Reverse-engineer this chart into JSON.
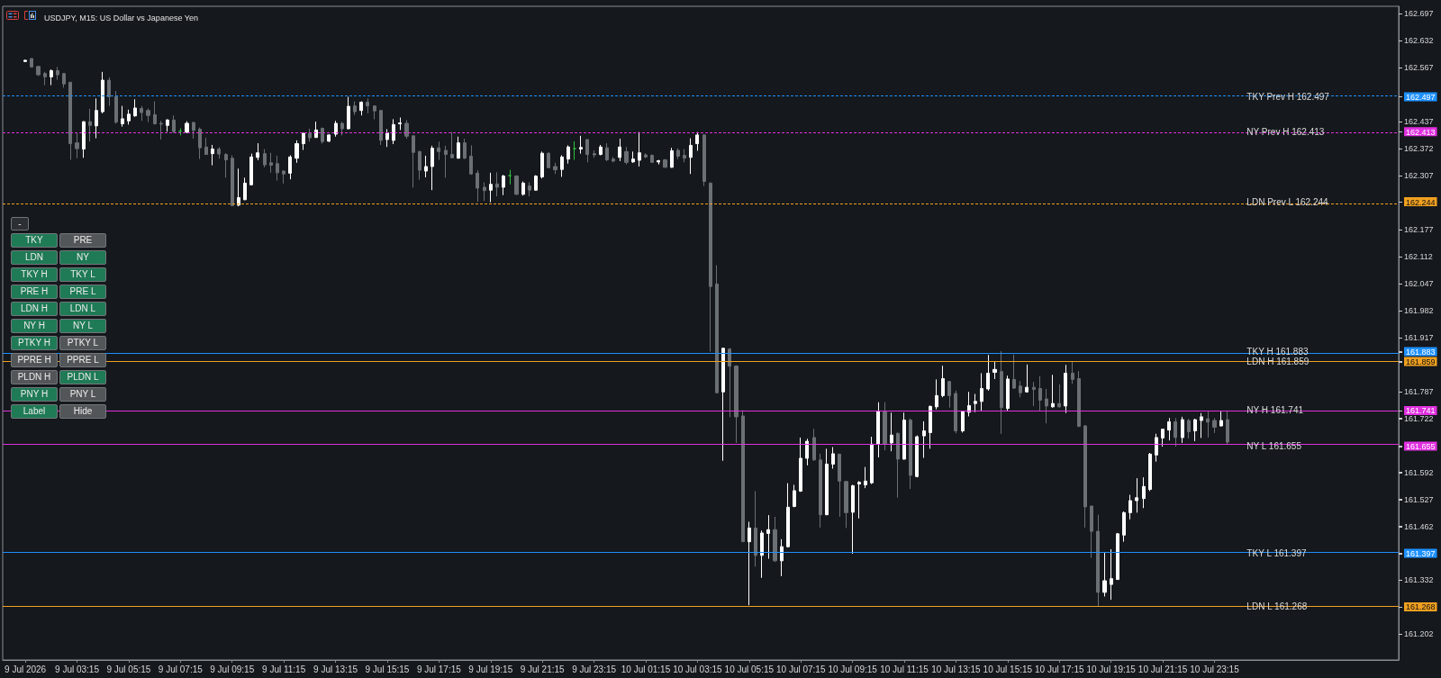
{
  "chart_data": {
    "type": "candlestick",
    "title": "USDJPY, M15: US Dollar vs Japanese Yen",
    "categories": [
      null,
      null,
      null,
      "9 Jul 2026",
      null,
      null,
      null,
      null,
      null,
      null,
      null,
      "9 Jul 03:15",
      null,
      null,
      null,
      null,
      null,
      null,
      null,
      "9 Jul 05:15",
      null,
      null,
      null,
      null,
      null,
      null,
      null,
      "9 Jul 07:15",
      null,
      null,
      null,
      null,
      null,
      null,
      null,
      "9 Jul 09:15",
      null,
      null,
      null,
      null,
      null,
      null,
      null,
      "9 Jul 11:15",
      null,
      null,
      null,
      null,
      null,
      null,
      null,
      "9 Jul 13:15",
      null,
      null,
      null,
      null,
      null,
      null,
      null,
      "9 Jul 15:15",
      null,
      null,
      null,
      null,
      null,
      null,
      null,
      "9 Jul 17:15",
      null,
      null,
      null,
      null,
      null,
      null,
      null,
      "9 Jul 19:15",
      null,
      null,
      null,
      null,
      null,
      null,
      null,
      "9 Jul 21:15",
      null,
      null,
      null,
      null,
      null,
      null,
      null,
      "9 Jul 23:15",
      null,
      null,
      null,
      null,
      null,
      null,
      null,
      "10 Jul 01:15",
      null,
      null,
      null,
      null,
      null,
      null,
      null,
      "10 Jul 03:15",
      null,
      null,
      null,
      null,
      null,
      null,
      null,
      "10 Jul 05:15",
      null,
      null,
      null,
      null,
      null,
      null,
      null,
      "10 Jul 07:15",
      null,
      null,
      null,
      null,
      null,
      null,
      null,
      "10 Jul 09:15",
      null,
      null,
      null,
      null,
      null,
      null,
      null,
      "10 Jul 11:15",
      null,
      null,
      null,
      null,
      null,
      null,
      null,
      "10 Jul 13:15",
      null,
      null,
      null,
      null,
      null,
      null,
      null,
      "10 Jul 15:15",
      null,
      null,
      null,
      null,
      null,
      null,
      null,
      "10 Jul 17:15",
      null,
      null,
      null,
      null,
      null,
      null,
      null,
      "10 Jul 19:15",
      null,
      null,
      null,
      null,
      null,
      null,
      null,
      "10 Jul 21:15",
      null,
      null,
      null,
      null,
      null,
      null,
      null,
      "10 Jul 23:15",
      null,
      null,
      null,
      null,
      null,
      null,
      null,
      null,
      null,
      null,
      null,
      null,
      null,
      null,
      null,
      null,
      null,
      null,
      null,
      null,
      null,
      null,
      null,
      null,
      null,
      null,
      null,
      null
    ],
    "ohlc": [
      null,
      null,
      null,
      [
        162.582,
        162.586,
        162.581,
        162.585
      ],
      [
        162.589,
        162.59,
        162.567,
        162.569
      ],
      [
        162.57,
        162.571,
        162.547,
        162.55
      ],
      [
        162.553,
        162.557,
        162.525,
        162.545
      ],
      [
        162.545,
        162.563,
        162.525,
        162.56
      ],
      [
        162.56,
        162.569,
        162.538,
        162.55
      ],
      [
        162.553,
        162.554,
        162.519,
        162.528
      ],
      [
        162.532,
        162.533,
        162.345,
        162.384
      ],
      [
        162.386,
        162.41,
        162.349,
        162.372
      ],
      [
        162.371,
        162.438,
        162.35,
        162.437
      ],
      [
        162.437,
        162.468,
        162.389,
        162.428
      ],
      [
        162.427,
        162.493,
        162.397,
        162.464
      ],
      [
        162.461,
        162.557,
        162.457,
        162.537
      ],
      [
        162.537,
        162.544,
        162.475,
        162.497
      ],
      [
        162.497,
        162.511,
        162.432,
        162.436
      ],
      [
        162.432,
        162.475,
        162.425,
        162.444
      ],
      [
        162.439,
        162.466,
        162.43,
        162.455
      ],
      [
        162.451,
        162.491,
        162.449,
        162.47
      ],
      [
        162.469,
        162.475,
        162.439,
        162.459
      ],
      [
        162.464,
        162.469,
        162.436,
        162.452
      ],
      [
        162.454,
        162.486,
        162.43,
        162.432
      ],
      [
        162.433,
        162.439,
        162.394,
        162.431
      ],
      [
        162.428,
        162.443,
        162.413,
        162.441
      ],
      [
        162.441,
        162.452,
        162.41,
        162.413
      ],
      [
        162.414,
        162.421,
        162.404,
        162.414
      ],
      [
        162.412,
        162.438,
        162.409,
        162.433
      ],
      [
        162.435,
        162.437,
        162.396,
        162.416
      ],
      [
        162.419,
        162.423,
        162.347,
        162.374
      ],
      [
        162.376,
        162.398,
        162.357,
        162.358
      ],
      [
        162.36,
        162.381,
        162.332,
        162.371
      ],
      [
        162.371,
        162.376,
        162.348,
        162.359
      ],
      [
        162.358,
        162.361,
        162.302,
        162.345
      ],
      [
        162.349,
        162.356,
        162.233,
        162.235
      ],
      [
        162.236,
        162.324,
        162.233,
        162.254
      ],
      [
        162.249,
        162.302,
        162.248,
        162.289
      ],
      [
        162.285,
        162.36,
        162.284,
        162.352
      ],
      [
        162.351,
        162.385,
        162.344,
        162.362
      ],
      [
        162.36,
        162.371,
        162.327,
        162.333
      ],
      [
        162.338,
        162.362,
        162.314,
        162.332
      ],
      [
        162.336,
        162.355,
        162.295,
        162.314
      ],
      [
        162.318,
        162.32,
        162.288,
        162.311
      ],
      [
        162.313,
        162.356,
        162.298,
        162.352
      ],
      [
        162.349,
        162.392,
        162.338,
        162.384
      ],
      [
        162.384,
        162.41,
        162.369,
        162.409
      ],
      [
        162.409,
        162.42,
        162.389,
        162.398
      ],
      [
        162.399,
        162.437,
        162.398,
        162.417
      ],
      [
        162.421,
        162.423,
        162.384,
        162.389
      ],
      [
        162.39,
        162.407,
        162.388,
        162.405
      ],
      [
        162.407,
        162.439,
        162.401,
        162.433
      ],
      [
        162.433,
        162.437,
        162.404,
        162.42
      ],
      [
        162.42,
        162.497,
        162.418,
        162.474
      ],
      [
        162.475,
        162.486,
        162.453,
        162.461
      ],
      [
        162.464,
        162.486,
        162.452,
        162.484
      ],
      [
        162.484,
        162.493,
        162.457,
        162.475
      ],
      [
        162.475,
        162.476,
        162.443,
        162.463
      ],
      [
        162.464,
        162.465,
        162.381,
        162.392
      ],
      [
        162.394,
        162.419,
        162.376,
        162.41
      ],
      [
        162.392,
        162.443,
        162.383,
        162.43
      ],
      [
        162.432,
        162.447,
        162.417,
        162.434
      ],
      [
        162.433,
        162.441,
        162.396,
        162.402
      ],
      [
        162.403,
        162.404,
        162.278,
        162.363
      ],
      [
        162.365,
        162.367,
        162.297,
        162.32
      ],
      [
        162.318,
        162.355,
        162.303,
        162.329
      ],
      [
        162.329,
        162.379,
        162.272,
        162.373
      ],
      [
        162.374,
        162.389,
        162.345,
        162.365
      ],
      [
        162.368,
        162.379,
        162.302,
        162.358
      ],
      [
        162.358,
        162.412,
        162.349,
        162.35
      ],
      [
        162.349,
        162.401,
        162.348,
        162.386
      ],
      [
        162.386,
        162.396,
        162.347,
        162.349
      ],
      [
        162.354,
        162.38,
        162.309,
        162.311
      ],
      [
        162.313,
        162.32,
        162.244,
        162.277
      ],
      [
        162.279,
        162.291,
        162.246,
        162.271
      ],
      [
        162.272,
        162.314,
        162.243,
        162.286
      ],
      [
        162.287,
        162.315,
        162.257,
        162.279
      ],
      [
        162.279,
        162.309,
        162.26,
        162.306
      ],
      [
        162.307,
        162.321,
        162.286,
        162.307
      ],
      [
        162.306,
        162.308,
        162.26,
        162.262
      ],
      [
        162.262,
        162.293,
        162.259,
        162.289
      ],
      [
        162.282,
        162.291,
        162.257,
        162.272
      ],
      [
        162.272,
        162.308,
        162.271,
        162.306
      ],
      [
        162.304,
        162.365,
        162.3,
        162.361
      ],
      [
        162.361,
        162.363,
        162.325,
        162.326
      ],
      [
        162.329,
        162.338,
        162.311,
        162.321
      ],
      [
        162.322,
        162.356,
        162.304,
        162.352
      ],
      [
        162.347,
        162.38,
        162.336,
        162.376
      ],
      [
        162.372,
        162.39,
        162.345,
        162.372
      ],
      [
        162.371,
        162.403,
        162.36,
        162.375
      ],
      [
        162.394,
        162.394,
        162.339,
        162.358
      ],
      [
        162.36,
        162.368,
        162.35,
        162.357
      ],
      [
        162.358,
        162.381,
        162.356,
        162.376
      ],
      [
        162.374,
        162.385,
        162.342,
        162.345
      ],
      [
        162.347,
        162.352,
        162.339,
        162.342
      ],
      [
        162.351,
        162.396,
        162.342,
        162.376
      ],
      [
        162.365,
        162.376,
        162.334,
        162.339
      ],
      [
        162.34,
        162.365,
        162.338,
        162.347
      ],
      [
        162.344,
        162.412,
        162.329,
        162.362
      ],
      [
        162.357,
        162.361,
        162.349,
        162.352
      ],
      [
        162.356,
        162.358,
        162.338,
        162.339
      ],
      [
        162.34,
        162.345,
        162.334,
        162.343
      ],
      [
        162.345,
        162.347,
        162.326,
        162.327
      ],
      [
        162.327,
        162.374,
        162.326,
        162.367
      ],
      [
        162.368,
        162.373,
        162.347,
        162.354
      ],
      [
        162.356,
        162.371,
        162.339,
        162.349
      ],
      [
        162.351,
        162.397,
        162.311,
        162.38
      ],
      [
        162.384,
        162.412,
        162.367,
        162.405
      ],
      [
        162.405,
        162.407,
        162.282,
        162.293
      ],
      [
        162.289,
        162.291,
        161.883,
        162.04
      ],
      [
        162.046,
        162.091,
        161.783,
        161.784
      ],
      [
        161.786,
        161.892,
        161.62,
        161.891
      ],
      [
        161.889,
        161.892,
        161.725,
        161.848
      ],
      [
        161.848,
        161.85,
        161.663,
        161.726
      ],
      [
        161.728,
        161.742,
        161.424,
        161.425
      ],
      [
        161.425,
        161.473,
        161.272,
        161.458
      ],
      [
        161.458,
        161.547,
        161.365,
        161.392
      ],
      [
        161.392,
        161.452,
        161.338,
        161.446
      ],
      [
        161.445,
        161.489,
        161.384,
        161.454
      ],
      [
        161.454,
        161.485,
        161.376,
        161.379
      ],
      [
        161.379,
        161.431,
        161.342,
        161.413
      ],
      [
        161.413,
        161.566,
        161.411,
        161.508
      ],
      [
        161.51,
        161.562,
        161.508,
        161.548
      ],
      [
        161.547,
        161.676,
        161.545,
        161.626
      ],
      [
        161.626,
        161.673,
        161.609,
        161.667
      ],
      [
        161.676,
        161.697,
        161.62,
        161.622
      ],
      [
        161.622,
        161.637,
        161.459,
        161.49
      ],
      [
        161.49,
        161.649,
        161.489,
        161.612
      ],
      [
        161.612,
        161.653,
        161.601,
        161.637
      ],
      [
        161.636,
        161.637,
        161.485,
        161.571
      ],
      [
        161.57,
        161.571,
        161.458,
        161.495
      ],
      [
        161.496,
        161.562,
        161.396,
        161.56
      ],
      [
        161.564,
        161.571,
        161.481,
        161.568
      ],
      [
        161.562,
        161.605,
        161.554,
        161.571
      ],
      [
        161.567,
        161.678,
        161.564,
        161.66
      ],
      [
        161.66,
        161.761,
        161.628,
        161.74
      ],
      [
        161.738,
        161.761,
        161.645,
        161.66
      ],
      [
        161.663,
        161.736,
        161.643,
        161.682
      ],
      [
        161.686,
        161.688,
        161.531,
        161.624
      ],
      [
        161.624,
        161.736,
        161.623,
        161.718
      ],
      [
        161.718,
        161.722,
        161.552,
        161.585
      ],
      [
        161.582,
        161.681,
        161.58,
        161.678
      ],
      [
        161.68,
        161.715,
        161.627,
        161.692
      ],
      [
        161.688,
        161.753,
        161.649,
        161.751
      ],
      [
        161.75,
        161.816,
        161.744,
        161.777
      ],
      [
        161.777,
        161.849,
        161.773,
        161.818
      ],
      [
        161.811,
        161.812,
        161.748,
        161.777
      ],
      [
        161.782,
        161.789,
        161.686,
        161.692
      ],
      [
        161.692,
        161.74,
        161.688,
        161.739
      ],
      [
        161.737,
        161.786,
        161.727,
        161.753
      ],
      [
        161.758,
        161.781,
        161.737,
        161.763
      ],
      [
        161.763,
        161.831,
        161.741,
        161.794
      ],
      [
        161.793,
        161.875,
        161.789,
        161.831
      ],
      [
        161.833,
        161.858,
        161.817,
        161.84
      ],
      [
        161.835,
        161.884,
        161.685,
        161.748
      ],
      [
        161.746,
        161.825,
        161.741,
        161.817
      ],
      [
        161.816,
        161.876,
        161.793,
        161.795
      ],
      [
        161.8,
        161.812,
        161.773,
        161.784
      ],
      [
        161.786,
        161.852,
        161.784,
        161.797
      ],
      [
        161.797,
        161.81,
        161.752,
        161.792
      ],
      [
        161.794,
        161.824,
        161.741,
        161.766
      ],
      [
        161.769,
        161.793,
        161.71,
        161.752
      ],
      [
        161.75,
        161.827,
        161.748,
        161.758
      ],
      [
        161.758,
        161.804,
        161.748,
        161.75
      ],
      [
        161.752,
        161.851,
        161.735,
        161.831
      ],
      [
        161.831,
        161.858,
        161.805,
        161.816
      ],
      [
        161.818,
        161.836,
        161.701,
        161.703
      ],
      [
        161.704,
        161.706,
        161.459,
        161.509
      ],
      [
        161.511,
        161.511,
        161.386,
        161.45
      ],
      [
        161.45,
        161.49,
        161.268,
        161.303
      ],
      [
        161.303,
        161.398,
        161.293,
        161.331
      ],
      [
        161.322,
        161.407,
        161.285,
        161.336
      ],
      [
        161.334,
        161.446,
        161.333,
        161.444
      ],
      [
        161.441,
        161.498,
        161.425,
        161.495
      ],
      [
        161.495,
        161.538,
        161.479,
        161.524
      ],
      [
        161.524,
        161.578,
        161.495,
        161.531
      ],
      [
        161.529,
        161.58,
        161.506,
        161.558
      ],
      [
        161.551,
        161.639,
        161.547,
        161.636
      ],
      [
        161.634,
        161.685,
        161.618,
        161.676
      ],
      [
        161.675,
        161.697,
        161.654,
        161.696
      ],
      [
        161.694,
        161.723,
        161.669,
        161.714
      ],
      [
        161.714,
        161.723,
        161.654,
        161.676
      ],
      [
        161.676,
        161.726,
        161.663,
        161.719
      ],
      [
        161.717,
        161.721,
        161.674,
        161.69
      ],
      [
        161.692,
        161.721,
        161.667,
        161.719
      ],
      [
        161.717,
        161.735,
        161.675,
        161.726
      ],
      [
        161.721,
        161.739,
        161.676,
        161.713
      ],
      [
        161.717,
        161.723,
        161.687,
        161.701
      ],
      [
        161.704,
        161.739,
        161.703,
        161.717
      ],
      [
        161.719,
        161.739,
        161.659,
        161.665
      ],
      null,
      null,
      null,
      null,
      null,
      null,
      null,
      null,
      null,
      null,
      null,
      null,
      null,
      null,
      null,
      null,
      null,
      null,
      null,
      null,
      null,
      null,
      null,
      null,
      null,
      null
    ],
    "colors": [
      null,
      null,
      null,
      "#ffffff",
      "#6b7075",
      "#6b7075",
      "#6b7075",
      "#ffffff",
      "#6b7075",
      "#6b7075",
      "#6b7075",
      "#6b7075",
      "#ffffff",
      "#6b7075",
      "#ffffff",
      "#ffffff",
      "#6b7075",
      "#6b7075",
      "#ffffff",
      "#ffffff",
      "#ffffff",
      "#6b7075",
      "#6b7075",
      "#6b7075",
      "#6b7075",
      "#ffffff",
      "#6b7075",
      "#2fbf3f",
      "#ffffff",
      "#6b7075",
      "#6b7075",
      "#6b7075",
      "#ffffff",
      "#6b7075",
      "#6b7075",
      "#6b7075",
      "#ffffff",
      "#ffffff",
      "#ffffff",
      "#ffffff",
      "#6b7075",
      "#6b7075",
      "#6b7075",
      "#6b7075",
      "#ffffff",
      "#ffffff",
      "#ffffff",
      "#6b7075",
      "#ffffff",
      "#6b7075",
      "#ffffff",
      "#ffffff",
      "#6b7075",
      "#ffffff",
      "#6b7075",
      "#ffffff",
      "#6b7075",
      "#6b7075",
      "#6b7075",
      "#ffffff",
      "#ffffff",
      "#ffffff",
      "#6b7075",
      "#6b7075",
      "#6b7075",
      "#ffffff",
      "#ffffff",
      "#6b7075",
      "#6b7075",
      "#6b7075",
      "#ffffff",
      "#6b7075",
      "#6b7075",
      "#6b7075",
      "#6b7075",
      "#ffffff",
      "#6b7075",
      "#ffffff",
      "#2fbf3f",
      "#6b7075",
      "#ffffff",
      "#6b7075",
      "#ffffff",
      "#ffffff",
      "#6b7075",
      "#6b7075",
      "#ffffff",
      "#ffffff",
      "#2fbf3f",
      "#ffffff",
      "#6b7075",
      "#6b7075",
      "#ffffff",
      "#6b7075",
      "#6b7075",
      "#ffffff",
      "#6b7075",
      "#ffffff",
      "#ffffff",
      "#6b7075",
      "#6b7075",
      "#ffffff",
      "#6b7075",
      "#ffffff",
      "#6b7075",
      "#6b7075",
      "#ffffff",
      "#ffffff",
      "#6b7075",
      "#6b7075",
      "#6b7075",
      "#ffffff",
      "#6b7075",
      "#6b7075",
      "#6b7075",
      "#ffffff",
      "#6b7075",
      "#ffffff",
      "#ffffff",
      "#6b7075",
      "#ffffff",
      "#ffffff",
      "#ffffff",
      "#ffffff",
      "#ffffff",
      "#6b7075",
      "#6b7075",
      "#ffffff",
      "#ffffff",
      "#6b7075",
      "#6b7075",
      "#ffffff",
      "#ffffff",
      "#ffffff",
      "#ffffff",
      "#ffffff",
      "#6b7075",
      "#ffffff",
      "#6b7075",
      "#ffffff",
      "#6b7075",
      "#ffffff",
      "#ffffff",
      "#ffffff",
      "#ffffff",
      "#ffffff",
      "#6b7075",
      "#6b7075",
      "#ffffff",
      "#ffffff",
      "#ffffff",
      "#ffffff",
      "#ffffff",
      "#ffffff",
      "#6b7075",
      "#ffffff",
      "#6b7075",
      "#6b7075",
      "#ffffff",
      "#6b7075",
      "#6b7075",
      "#6b7075",
      "#ffffff",
      "#6b7075",
      "#ffffff",
      "#6b7075",
      "#6b7075",
      "#6b7075",
      "#6b7075",
      "#6b7075",
      "#ffffff",
      "#ffffff",
      "#ffffff",
      "#ffffff",
      "#ffffff",
      "#ffffff",
      "#ffffff",
      "#ffffff",
      "#ffffff",
      "#ffffff",
      "#ffffff",
      "#6b7075",
      "#ffffff",
      "#6b7075",
      "#ffffff",
      "#ffffff",
      "#6b7075",
      "#6b7075",
      "#ffffff",
      "#6b7075",
      null,
      null,
      null,
      null,
      null,
      null,
      null,
      null,
      null,
      null,
      null,
      null,
      null,
      null,
      null,
      null,
      null,
      null,
      null,
      null,
      null,
      null,
      null,
      null,
      null,
      null
    ],
    "ylim": [
      161.14,
      162.715
    ],
    "yticks": [
      161.202,
      161.268,
      161.332,
      161.397,
      161.462,
      161.527,
      161.592,
      161.655,
      161.722,
      161.741,
      161.787,
      161.859,
      161.883,
      161.917,
      161.982,
      162.047,
      162.112,
      162.177,
      162.244,
      162.307,
      162.372,
      162.413,
      162.437,
      162.497,
      162.567,
      162.632,
      162.697
    ],
    "ref_lines": [
      {
        "axis": "y",
        "value": 162.497,
        "label": "TKY Prev H 162.497",
        "color": "#1e90ff",
        "line_style": "dashed"
      },
      {
        "axis": "y",
        "value": 162.413,
        "label": "NY Prev H 162.413",
        "color": "#e030e0",
        "line_style": "dashed"
      },
      {
        "axis": "y",
        "value": 162.244,
        "label": "LDN Prev L 162.244",
        "color": "#f0a020",
        "line_style": "dashed"
      },
      {
        "axis": "y",
        "value": 161.883,
        "label": "TKY H 161.883",
        "color": "#1e90ff",
        "line_style": "solid"
      },
      {
        "axis": "y",
        "value": 161.859,
        "label": "LDN H 161.859",
        "color": "#f0a020",
        "line_style": "solid"
      },
      {
        "axis": "y",
        "value": 161.741,
        "label": "NY H 161.741",
        "color": "#e030e0",
        "line_style": "solid"
      },
      {
        "axis": "y",
        "value": 161.655,
        "label": "NY L 161.655",
        "color": "#e030e0",
        "line_style": "solid"
      },
      {
        "axis": "y",
        "value": 161.397,
        "label": "TKY L 161.397",
        "color": "#1e90ff",
        "line_style": "solid"
      },
      {
        "axis": "y",
        "value": 161.268,
        "label": "LDN L 161.268",
        "color": "#f0a020",
        "line_style": "solid"
      }
    ],
    "annotations": [
      "-",
      "TKY",
      "PRE",
      "LDN",
      "NY",
      "TKY H",
      "TKY L",
      "PRE H",
      "PRE L",
      "LDN H",
      "LDN L",
      "NY H",
      "NY L",
      "PTKY H",
      "PTKY L",
      "PPRE H",
      "PPRE L",
      "PLDN H",
      "PLDN L",
      "PNY H",
      "PNY L",
      "Label",
      "Hide"
    ]
  }
}
